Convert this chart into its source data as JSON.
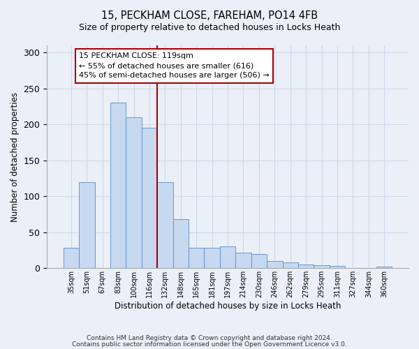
{
  "title_line1": "15, PECKHAM CLOSE, FAREHAM, PO14 4FB",
  "title_line2": "Size of property relative to detached houses in Locks Heath",
  "xlabel": "Distribution of detached houses by size in Locks Heath",
  "ylabel": "Number of detached properties",
  "categories": [
    "35sqm",
    "51sqm",
    "67sqm",
    "83sqm",
    "100sqm",
    "116sqm",
    "132sqm",
    "148sqm",
    "165sqm",
    "181sqm",
    "197sqm",
    "214sqm",
    "230sqm",
    "246sqm",
    "262sqm",
    "279sqm",
    "295sqm",
    "311sqm",
    "327sqm",
    "344sqm",
    "360sqm"
  ],
  "values": [
    28,
    120,
    0,
    230,
    210,
    195,
    120,
    68,
    28,
    28,
    30,
    22,
    20,
    10,
    8,
    5,
    4,
    3,
    0,
    0,
    2
  ],
  "bar_color": "#c6d9f0",
  "bar_edge_color": "#5b8ac5",
  "grid_color": "#d0d8e8",
  "vline_position": 5,
  "vline_color": "#aa0000",
  "annotation_text": "15 PECKHAM CLOSE: 119sqm\n← 55% of detached houses are smaller (616)\n45% of semi-detached houses are larger (506) →",
  "annotation_box_facecolor": "#ffffff",
  "annotation_box_edgecolor": "#aa0000",
  "ylim": [
    0,
    310
  ],
  "yticks": [
    0,
    50,
    100,
    150,
    200,
    250,
    300
  ],
  "footer_line1": "Contains HM Land Registry data © Crown copyright and database right 2024.",
  "footer_line2": "Contains public sector information licensed under the Open Government Licence v3.0.",
  "bg_color": "#eaeff8",
  "plot_bg_color": "#eaeff8"
}
